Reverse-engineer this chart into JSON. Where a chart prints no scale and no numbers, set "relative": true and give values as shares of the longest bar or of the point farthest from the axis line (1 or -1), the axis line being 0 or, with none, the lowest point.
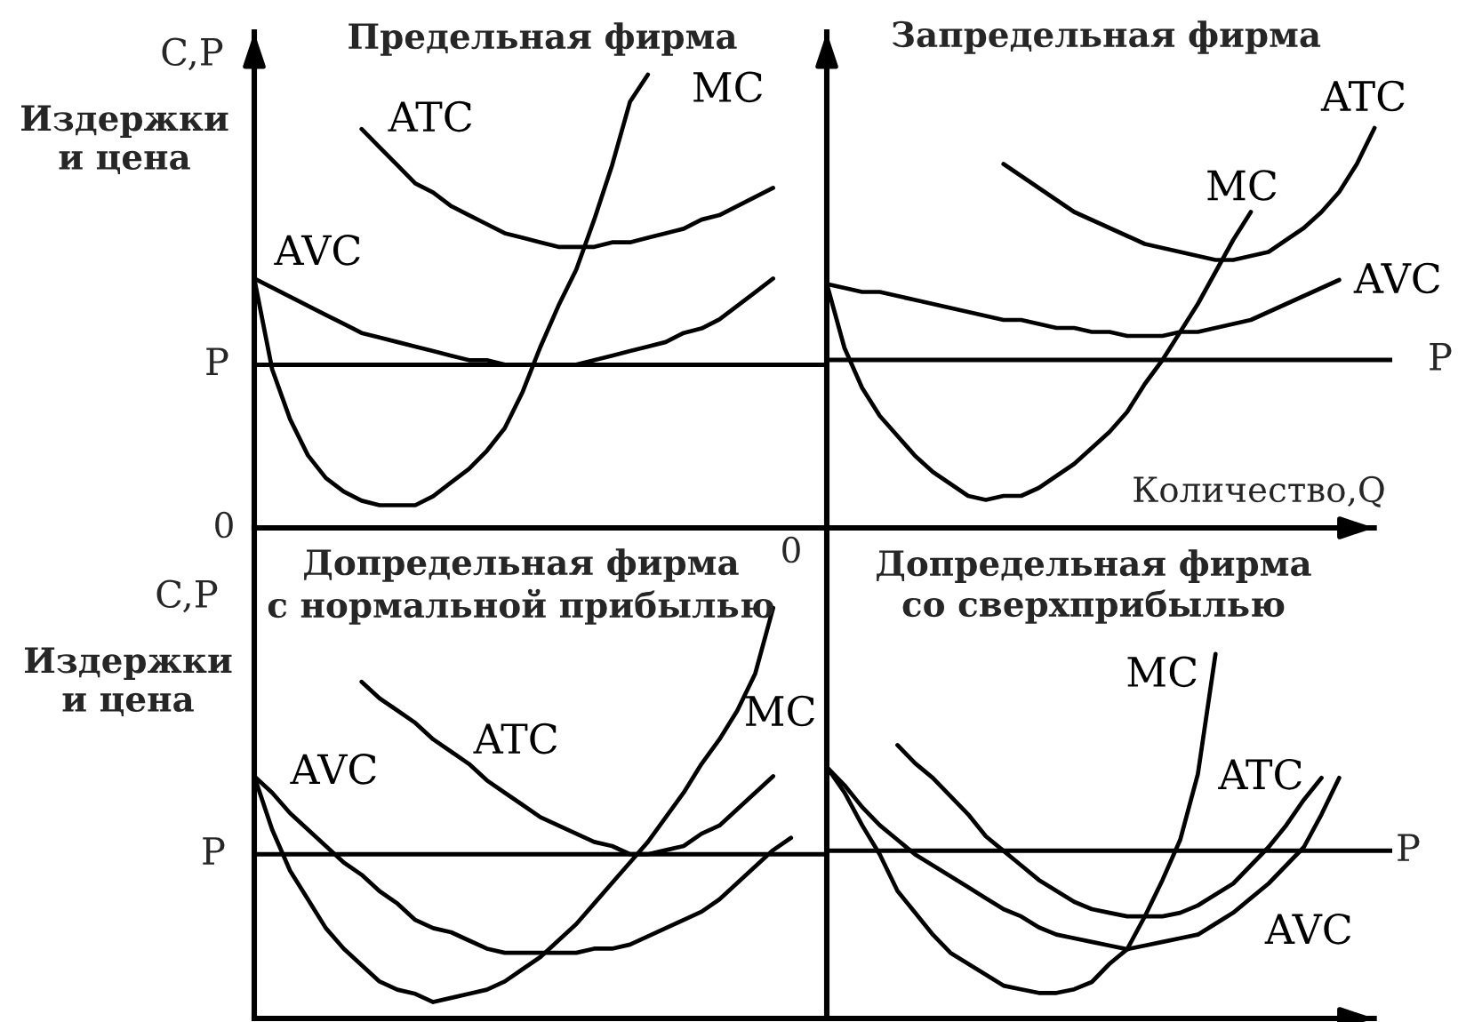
{
  "chart_data": [
    {
      "type": "line",
      "title": "Предельная фирма",
      "ylabel": "C,P",
      "relative": true,
      "annotations": [
        "0",
        "Издержки\nи цена"
      ],
      "categories": [
        null,
        null,
        null,
        null,
        null,
        null,
        null,
        null,
        null,
        null,
        null,
        null,
        null,
        null,
        null,
        null,
        null,
        null,
        null,
        null,
        null,
        null,
        null,
        null,
        null,
        null,
        null,
        null,
        null,
        null,
        null,
        null,
        null
      ],
      "series": [
        {
          "name": "MC",
          "color": "#000000",
          "values": [
            0.55,
            0.35,
            0.24,
            0.16,
            0.11,
            0.08,
            0.06,
            0.05,
            0.05,
            0.05,
            0.07,
            0.1,
            0.13,
            0.17,
            0.22,
            0.3,
            0.4,
            0.49,
            0.57,
            0.68,
            0.8,
            0.94,
            1,
            null,
            null,
            null,
            null,
            null,
            null,
            null,
            null,
            null,
            null
          ]
        },
        {
          "name": "ATC",
          "color": "#000000",
          "values": [
            null,
            null,
            null,
            null,
            null,
            null,
            0.88,
            0.84,
            0.8,
            0.76,
            0.74,
            0.71,
            0.69,
            0.67,
            0.65,
            0.64,
            0.63,
            0.62,
            0.62,
            0.62,
            0.63,
            0.63,
            0.64,
            0.65,
            0.66,
            0.68,
            0.69,
            0.71,
            0.73,
            0.75,
            null,
            null,
            null
          ]
        },
        {
          "name": "AVC",
          "color": "#000000",
          "values": [
            0.55,
            0.53,
            0.51,
            0.49,
            0.47,
            0.45,
            0.43,
            0.42,
            0.41,
            0.4,
            0.39,
            0.38,
            0.37,
            0.37,
            0.36,
            0.36,
            0.36,
            0.36,
            0.36,
            0.37,
            0.38,
            0.39,
            0.4,
            0.41,
            0.43,
            0.44,
            0.46,
            0.49,
            0.52,
            0.55,
            null,
            null,
            null
          ]
        }
      ],
      "ref_lines": [
        {
          "axis": "y",
          "value": 0.36,
          "label": "P"
        }
      ]
    },
    {
      "type": "line",
      "title": "Запредельная фирма",
      "xlabel": "Количество,Q",
      "relative": true,
      "annotations": [
        "0"
      ],
      "categories": [
        null,
        null,
        null,
        null,
        null,
        null,
        null,
        null,
        null,
        null,
        null,
        null,
        null,
        null,
        null,
        null,
        null,
        null,
        null,
        null,
        null,
        null,
        null,
        null,
        null,
        null,
        null,
        null,
        null,
        null,
        null,
        null,
        null
      ],
      "series": [
        {
          "name": "MC",
          "color": "#000000",
          "values": [
            0.61,
            0.45,
            0.35,
            0.28,
            0.23,
            0.18,
            0.14,
            0.11,
            0.08,
            0.07,
            0.08,
            0.08,
            0.1,
            0.13,
            0.16,
            0.2,
            0.24,
            0.29,
            0.36,
            0.42,
            0.49,
            0.56,
            0.64,
            0.72,
            0.79,
            null,
            null,
            null,
            null,
            null,
            null,
            null,
            null
          ]
        },
        {
          "name": "ATC",
          "color": "#000000",
          "values": [
            null,
            null,
            null,
            null,
            null,
            null,
            null,
            null,
            null,
            null,
            0.91,
            0.88,
            0.85,
            0.82,
            0.79,
            0.77,
            0.75,
            0.73,
            0.71,
            0.7,
            0.69,
            0.68,
            0.67,
            0.67,
            0.68,
            0.69,
            0.72,
            0.75,
            0.79,
            0.84,
            0.91,
            1,
            null
          ]
        },
        {
          "name": "AVC",
          "color": "#000000",
          "values": [
            0.61,
            0.6,
            0.59,
            0.59,
            0.58,
            0.57,
            0.56,
            0.55,
            0.54,
            0.53,
            0.52,
            0.52,
            0.51,
            0.5,
            0.5,
            0.49,
            0.49,
            0.48,
            0.48,
            0.48,
            0.49,
            0.49,
            0.5,
            0.51,
            0.52,
            0.54,
            0.56,
            0.58,
            0.6,
            0.62,
            null,
            null,
            null
          ]
        }
      ],
      "ref_lines": [
        {
          "axis": "y",
          "value": 0.42,
          "label": "P"
        }
      ]
    },
    {
      "type": "line",
      "title": "Допредельная фирма\nс нормальной прибылью",
      "ylabel": "C,P",
      "relative": true,
      "annotations": [
        "Издержки\nи цена"
      ],
      "categories": [
        null,
        null,
        null,
        null,
        null,
        null,
        null,
        null,
        null,
        null,
        null,
        null,
        null,
        null,
        null,
        null,
        null,
        null,
        null,
        null,
        null,
        null,
        null,
        null,
        null,
        null,
        null,
        null,
        null,
        null,
        null,
        null,
        null
      ],
      "series": [
        {
          "name": "MC",
          "color": "#000000",
          "values": [
            0.59,
            0.46,
            0.36,
            0.29,
            0.22,
            0.17,
            0.13,
            0.09,
            0.07,
            0.06,
            0.04,
            0.05,
            0.06,
            0.07,
            0.09,
            0.12,
            0.15,
            0.19,
            0.23,
            0.28,
            0.33,
            0.38,
            0.43,
            0.49,
            0.55,
            0.62,
            0.68,
            0.75,
            0.84,
            1,
            null,
            null,
            null
          ]
        },
        {
          "name": "ATC",
          "color": "#000000",
          "values": [
            null,
            null,
            null,
            null,
            null,
            null,
            0.82,
            0.78,
            0.75,
            0.72,
            0.68,
            0.65,
            0.62,
            0.58,
            0.55,
            0.52,
            0.49,
            0.47,
            0.45,
            0.43,
            0.42,
            0.4,
            0.4,
            0.41,
            0.42,
            0.45,
            0.47,
            0.51,
            0.55,
            0.59,
            null,
            null,
            null
          ]
        },
        {
          "name": "AVC",
          "color": "#000000",
          "values": [
            0.59,
            0.55,
            0.5,
            0.46,
            0.42,
            0.38,
            0.35,
            0.31,
            0.28,
            0.24,
            0.22,
            0.21,
            0.19,
            0.17,
            0.16,
            0.16,
            0.16,
            0.16,
            0.16,
            0.17,
            0.17,
            0.18,
            0.2,
            0.22,
            0.24,
            0.26,
            0.29,
            0.33,
            0.37,
            0.41,
            0.44,
            null,
            null
          ]
        }
      ],
      "ref_lines": [
        {
          "axis": "y",
          "value": 0.4,
          "label": "P"
        }
      ]
    },
    {
      "type": "line",
      "title": "Допредельная фирма\nсо сверхприбылью",
      "relative": true,
      "categories": [
        null,
        null,
        null,
        null,
        null,
        null,
        null,
        null,
        null,
        null,
        null,
        null,
        null,
        null,
        null,
        null,
        null,
        null,
        null,
        null,
        null,
        null,
        null,
        null,
        null,
        null,
        null,
        null,
        null,
        null,
        null,
        null,
        null
      ],
      "series": [
        {
          "name": "MC",
          "color": "#000000",
          "values": [
            0.69,
            0.62,
            0.53,
            0.45,
            0.35,
            0.29,
            0.23,
            0.18,
            0.15,
            0.12,
            0.09,
            0.08,
            0.07,
            0.07,
            0.08,
            0.1,
            0.15,
            0.19,
            0.28,
            0.38,
            0.49,
            0.67,
            1,
            null,
            null,
            null,
            null,
            null,
            null,
            null,
            null,
            null,
            null
          ]
        },
        {
          "name": "ATC",
          "color": "#000000",
          "values": [
            null,
            null,
            null,
            null,
            0.75,
            0.7,
            0.66,
            0.61,
            0.56,
            0.5,
            0.46,
            0.42,
            0.38,
            0.35,
            0.32,
            0.3,
            0.29,
            0.28,
            0.28,
            0.28,
            0.29,
            0.31,
            0.34,
            0.37,
            0.42,
            0.47,
            0.53,
            0.6,
            0.66,
            null,
            null,
            null,
            null
          ]
        },
        {
          "name": "AVC",
          "color": "#000000",
          "values": [
            0.69,
            0.64,
            0.58,
            0.53,
            0.49,
            0.45,
            0.42,
            0.39,
            0.36,
            0.33,
            0.3,
            0.28,
            0.25,
            0.23,
            0.22,
            0.21,
            0.2,
            0.19,
            0.2,
            0.21,
            0.22,
            0.23,
            0.26,
            0.29,
            0.33,
            0.37,
            0.42,
            0.47,
            0.56,
            0.66,
            null,
            null,
            null
          ]
        }
      ],
      "ref_lines": [
        {
          "axis": "y",
          "value": 0.46,
          "label": "P"
        }
      ]
    }
  ]
}
